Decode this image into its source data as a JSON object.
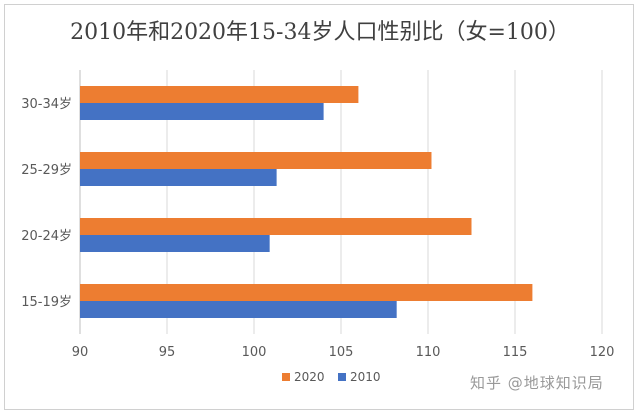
{
  "chart_data": {
    "type": "bar",
    "orientation": "horizontal",
    "title": "2010年和2020年15-34岁人口性别比（女=100）",
    "categories": [
      "15-19岁",
      "20-24岁",
      "25-29岁",
      "30-34岁"
    ],
    "series": [
      {
        "name": "2020",
        "color": "#ED7D31",
        "values": [
          116.0,
          112.5,
          110.2,
          106.0
        ]
      },
      {
        "name": "2010",
        "color": "#4472C4",
        "values": [
          108.2,
          100.9,
          101.3,
          104.0
        ]
      }
    ],
    "xlim": [
      90,
      120
    ],
    "xticks": [
      "90",
      "95",
      "100",
      "105",
      "110",
      "115",
      "120"
    ],
    "grid": true,
    "legend": "bottom-center"
  },
  "watermark": "知乎 @地球知识局"
}
